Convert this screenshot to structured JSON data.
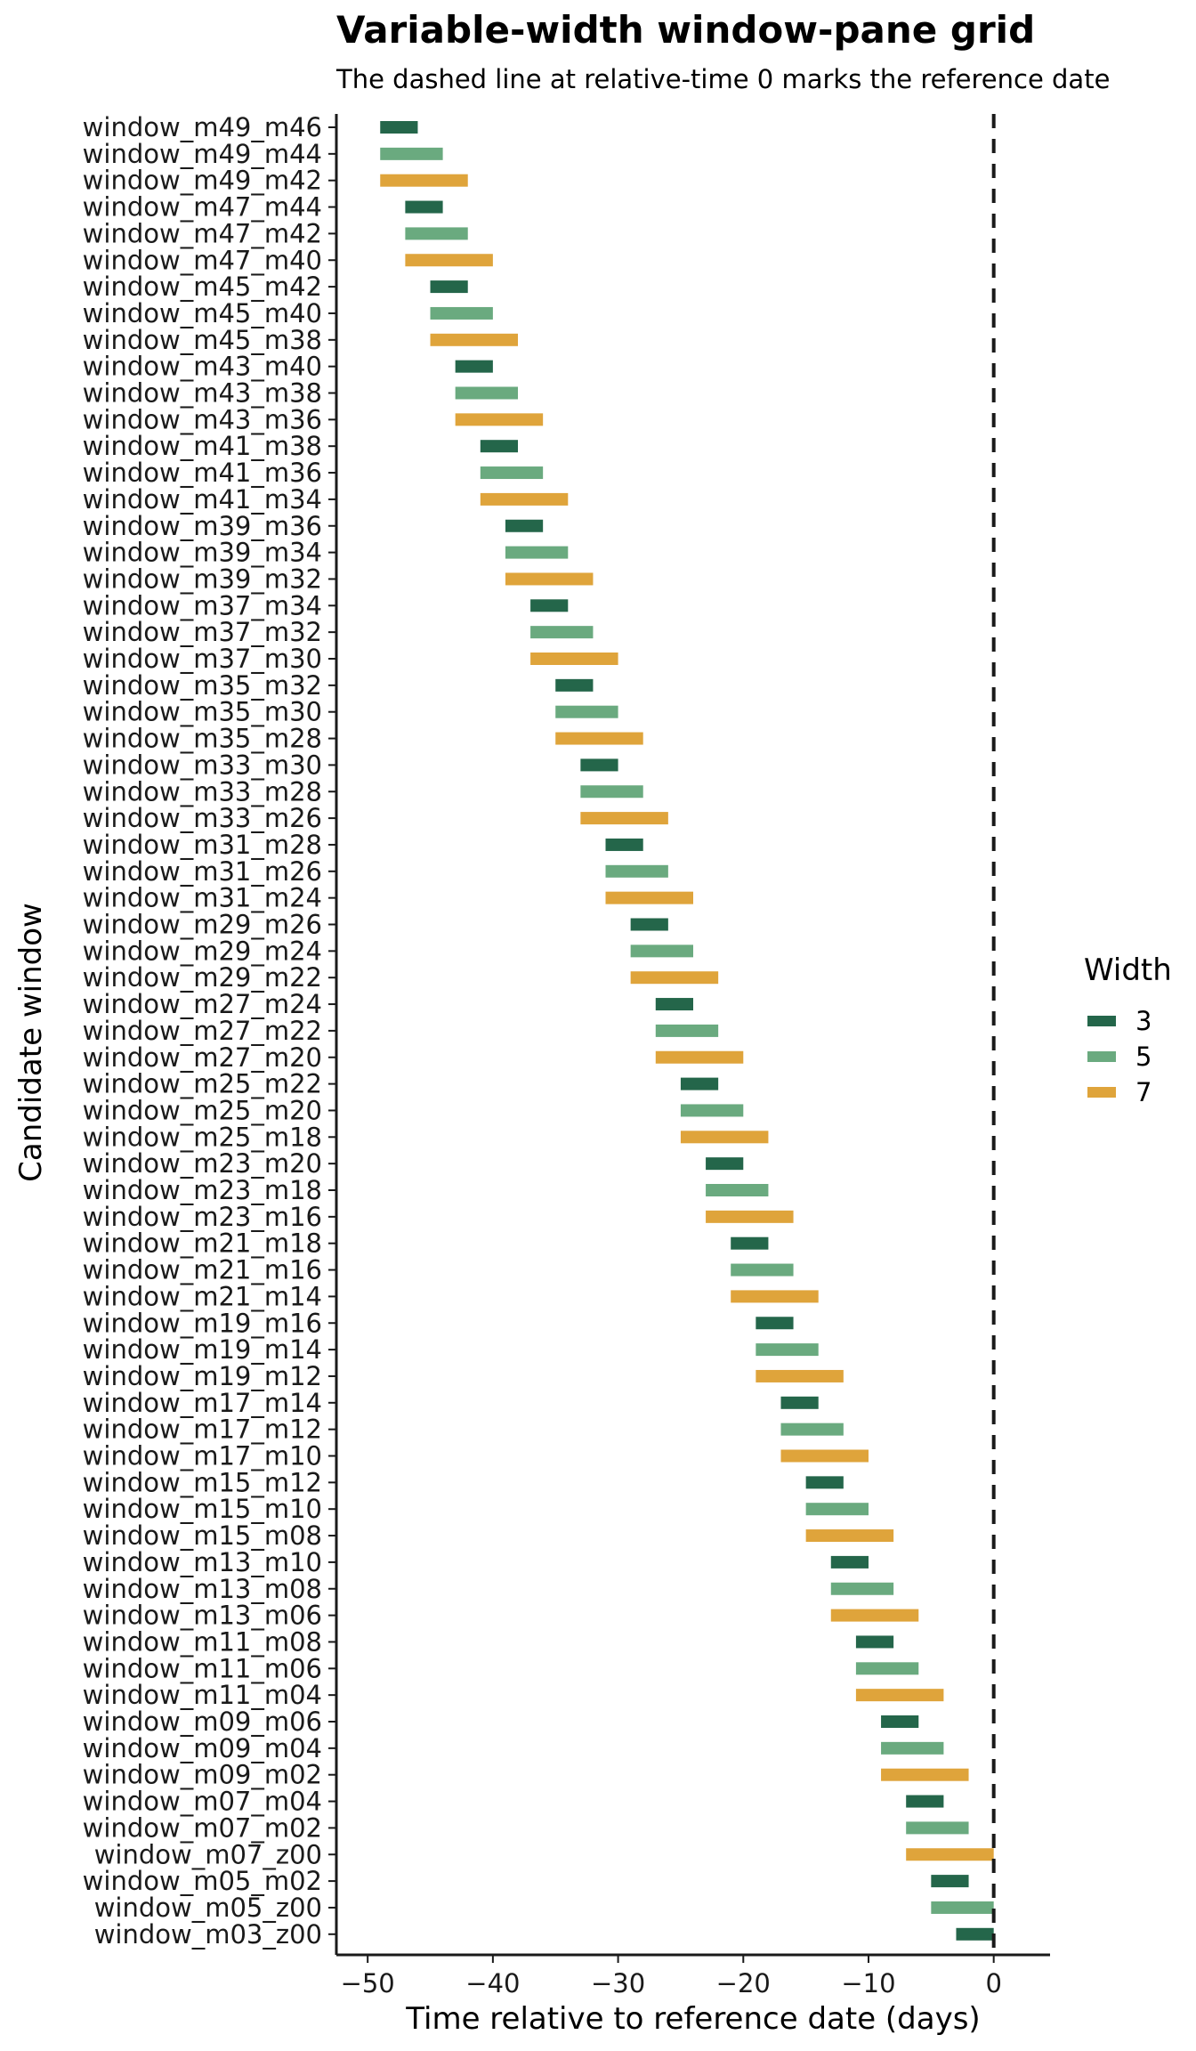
{
  "chart_data": {
    "type": "bar",
    "title": "Variable-width window-pane grid",
    "subtitle": "The dashed line at relative-time 0 marks the reference date",
    "xlabel": "Time relative to reference date (days)",
    "ylabel": "Candidate window",
    "xlim": [
      -52.5,
      4.5
    ],
    "xticks": [
      -50,
      -40,
      -30,
      -20,
      -10,
      0
    ],
    "reference_line_x": 0,
    "legend": {
      "title": "Width",
      "placement": "right",
      "entries": [
        {
          "label": "3",
          "color": "#24664a"
        },
        {
          "label": "5",
          "color": "#6aaa7f"
        },
        {
          "label": "7",
          "color": "#dfa43b"
        }
      ]
    },
    "windows": [
      {
        "label": "window_m49_m46",
        "start": -49,
        "end": -46,
        "width": "3"
      },
      {
        "label": "window_m49_m44",
        "start": -49,
        "end": -44,
        "width": "5"
      },
      {
        "label": "window_m49_m42",
        "start": -49,
        "end": -42,
        "width": "7"
      },
      {
        "label": "window_m47_m44",
        "start": -47,
        "end": -44,
        "width": "3"
      },
      {
        "label": "window_m47_m42",
        "start": -47,
        "end": -42,
        "width": "5"
      },
      {
        "label": "window_m47_m40",
        "start": -47,
        "end": -40,
        "width": "7"
      },
      {
        "label": "window_m45_m42",
        "start": -45,
        "end": -42,
        "width": "3"
      },
      {
        "label": "window_m45_m40",
        "start": -45,
        "end": -40,
        "width": "5"
      },
      {
        "label": "window_m45_m38",
        "start": -45,
        "end": -38,
        "width": "7"
      },
      {
        "label": "window_m43_m40",
        "start": -43,
        "end": -40,
        "width": "3"
      },
      {
        "label": "window_m43_m38",
        "start": -43,
        "end": -38,
        "width": "5"
      },
      {
        "label": "window_m43_m36",
        "start": -43,
        "end": -36,
        "width": "7"
      },
      {
        "label": "window_m41_m38",
        "start": -41,
        "end": -38,
        "width": "3"
      },
      {
        "label": "window_m41_m36",
        "start": -41,
        "end": -36,
        "width": "5"
      },
      {
        "label": "window_m41_m34",
        "start": -41,
        "end": -34,
        "width": "7"
      },
      {
        "label": "window_m39_m36",
        "start": -39,
        "end": -36,
        "width": "3"
      },
      {
        "label": "window_m39_m34",
        "start": -39,
        "end": -34,
        "width": "5"
      },
      {
        "label": "window_m39_m32",
        "start": -39,
        "end": -32,
        "width": "7"
      },
      {
        "label": "window_m37_m34",
        "start": -37,
        "end": -34,
        "width": "3"
      },
      {
        "label": "window_m37_m32",
        "start": -37,
        "end": -32,
        "width": "5"
      },
      {
        "label": "window_m37_m30",
        "start": -37,
        "end": -30,
        "width": "7"
      },
      {
        "label": "window_m35_m32",
        "start": -35,
        "end": -32,
        "width": "3"
      },
      {
        "label": "window_m35_m30",
        "start": -35,
        "end": -30,
        "width": "5"
      },
      {
        "label": "window_m35_m28",
        "start": -35,
        "end": -28,
        "width": "7"
      },
      {
        "label": "window_m33_m30",
        "start": -33,
        "end": -30,
        "width": "3"
      },
      {
        "label": "window_m33_m28",
        "start": -33,
        "end": -28,
        "width": "5"
      },
      {
        "label": "window_m33_m26",
        "start": -33,
        "end": -26,
        "width": "7"
      },
      {
        "label": "window_m31_m28",
        "start": -31,
        "end": -28,
        "width": "3"
      },
      {
        "label": "window_m31_m26",
        "start": -31,
        "end": -26,
        "width": "5"
      },
      {
        "label": "window_m31_m24",
        "start": -31,
        "end": -24,
        "width": "7"
      },
      {
        "label": "window_m29_m26",
        "start": -29,
        "end": -26,
        "width": "3"
      },
      {
        "label": "window_m29_m24",
        "start": -29,
        "end": -24,
        "width": "5"
      },
      {
        "label": "window_m29_m22",
        "start": -29,
        "end": -22,
        "width": "7"
      },
      {
        "label": "window_m27_m24",
        "start": -27,
        "end": -24,
        "width": "3"
      },
      {
        "label": "window_m27_m22",
        "start": -27,
        "end": -22,
        "width": "5"
      },
      {
        "label": "window_m27_m20",
        "start": -27,
        "end": -20,
        "width": "7"
      },
      {
        "label": "window_m25_m22",
        "start": -25,
        "end": -22,
        "width": "3"
      },
      {
        "label": "window_m25_m20",
        "start": -25,
        "end": -20,
        "width": "5"
      },
      {
        "label": "window_m25_m18",
        "start": -25,
        "end": -18,
        "width": "7"
      },
      {
        "label": "window_m23_m20",
        "start": -23,
        "end": -20,
        "width": "3"
      },
      {
        "label": "window_m23_m18",
        "start": -23,
        "end": -18,
        "width": "5"
      },
      {
        "label": "window_m23_m16",
        "start": -23,
        "end": -16,
        "width": "7"
      },
      {
        "label": "window_m21_m18",
        "start": -21,
        "end": -18,
        "width": "3"
      },
      {
        "label": "window_m21_m16",
        "start": -21,
        "end": -16,
        "width": "5"
      },
      {
        "label": "window_m21_m14",
        "start": -21,
        "end": -14,
        "width": "7"
      },
      {
        "label": "window_m19_m16",
        "start": -19,
        "end": -16,
        "width": "3"
      },
      {
        "label": "window_m19_m14",
        "start": -19,
        "end": -14,
        "width": "5"
      },
      {
        "label": "window_m19_m12",
        "start": -19,
        "end": -12,
        "width": "7"
      },
      {
        "label": "window_m17_m14",
        "start": -17,
        "end": -14,
        "width": "3"
      },
      {
        "label": "window_m17_m12",
        "start": -17,
        "end": -12,
        "width": "5"
      },
      {
        "label": "window_m17_m10",
        "start": -17,
        "end": -10,
        "width": "7"
      },
      {
        "label": "window_m15_m12",
        "start": -15,
        "end": -12,
        "width": "3"
      },
      {
        "label": "window_m15_m10",
        "start": -15,
        "end": -10,
        "width": "5"
      },
      {
        "label": "window_m15_m08",
        "start": -15,
        "end": -8,
        "width": "7"
      },
      {
        "label": "window_m13_m10",
        "start": -13,
        "end": -10,
        "width": "3"
      },
      {
        "label": "window_m13_m08",
        "start": -13,
        "end": -8,
        "width": "5"
      },
      {
        "label": "window_m13_m06",
        "start": -13,
        "end": -6,
        "width": "7"
      },
      {
        "label": "window_m11_m08",
        "start": -11,
        "end": -8,
        "width": "3"
      },
      {
        "label": "window_m11_m06",
        "start": -11,
        "end": -6,
        "width": "5"
      },
      {
        "label": "window_m11_m04",
        "start": -11,
        "end": -4,
        "width": "7"
      },
      {
        "label": "window_m09_m06",
        "start": -9,
        "end": -6,
        "width": "3"
      },
      {
        "label": "window_m09_m04",
        "start": -9,
        "end": -4,
        "width": "5"
      },
      {
        "label": "window_m09_m02",
        "start": -9,
        "end": -2,
        "width": "7"
      },
      {
        "label": "window_m07_m04",
        "start": -7,
        "end": -4,
        "width": "3"
      },
      {
        "label": "window_m07_m02",
        "start": -7,
        "end": -2,
        "width": "5"
      },
      {
        "label": "window_m07_z00",
        "start": -7,
        "end": 0,
        "width": "7"
      },
      {
        "label": "window_m05_m02",
        "start": -5,
        "end": -2,
        "width": "3"
      },
      {
        "label": "window_m05_z00",
        "start": -5,
        "end": 0,
        "width": "5"
      },
      {
        "label": "window_m03_z00",
        "start": -3,
        "end": 0,
        "width": "3"
      }
    ]
  }
}
